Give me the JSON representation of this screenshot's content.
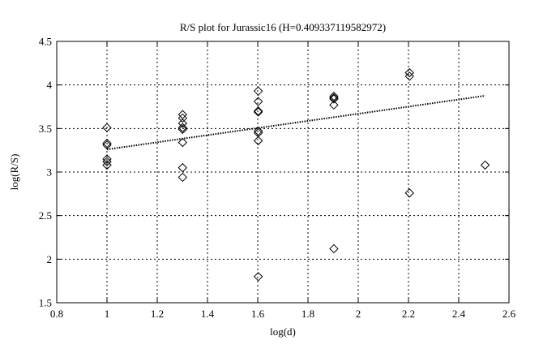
{
  "chart_data": {
    "type": "scatter",
    "title": "R/S plot for Jurassic16 (H=0.409337119582972)",
    "xlabel": "log(d)",
    "ylabel": "log(R/S)",
    "xlim": [
      0.8,
      2.6
    ],
    "ylim": [
      1.5,
      4.5
    ],
    "xticks": [
      0.8,
      1,
      1.2,
      1.4,
      1.6,
      1.8,
      2,
      2.2,
      2.4,
      2.6
    ],
    "yticks": [
      1.5,
      2,
      2.5,
      3,
      3.5,
      4,
      4.5
    ],
    "xtick_labels": [
      "0.8",
      "1",
      "1.2",
      "1.4",
      "1.6",
      "1.8",
      "2",
      "2.2",
      "2.4",
      "2.6"
    ],
    "ytick_labels": [
      "1.5",
      "2",
      "2.5",
      "3",
      "3.5",
      "4",
      "4.5"
    ],
    "grid": true,
    "marker": "diamond",
    "points": [
      {
        "x": 1.0,
        "y": 3.51
      },
      {
        "x": 1.0,
        "y": 3.33
      },
      {
        "x": 1.0,
        "y": 3.31
      },
      {
        "x": 1.0,
        "y": 3.15
      },
      {
        "x": 1.0,
        "y": 3.12
      },
      {
        "x": 1.0,
        "y": 3.08
      },
      {
        "x": 1.301,
        "y": 3.66
      },
      {
        "x": 1.301,
        "y": 3.62
      },
      {
        "x": 1.301,
        "y": 3.56
      },
      {
        "x": 1.301,
        "y": 3.51
      },
      {
        "x": 1.301,
        "y": 3.49
      },
      {
        "x": 1.301,
        "y": 3.34
      },
      {
        "x": 1.301,
        "y": 3.05
      },
      {
        "x": 1.301,
        "y": 2.94
      },
      {
        "x": 1.602,
        "y": 3.93
      },
      {
        "x": 1.602,
        "y": 3.81
      },
      {
        "x": 1.602,
        "y": 3.7
      },
      {
        "x": 1.602,
        "y": 3.69
      },
      {
        "x": 1.602,
        "y": 3.47
      },
      {
        "x": 1.602,
        "y": 3.45
      },
      {
        "x": 1.602,
        "y": 3.36
      },
      {
        "x": 1.602,
        "y": 1.8
      },
      {
        "x": 1.903,
        "y": 3.87
      },
      {
        "x": 1.903,
        "y": 3.85
      },
      {
        "x": 1.903,
        "y": 3.84
      },
      {
        "x": 1.903,
        "y": 3.77
      },
      {
        "x": 1.903,
        "y": 2.12
      },
      {
        "x": 2.204,
        "y": 4.14
      },
      {
        "x": 2.204,
        "y": 4.1
      },
      {
        "x": 2.204,
        "y": 2.76
      },
      {
        "x": 2.505,
        "y": 3.08
      }
    ],
    "fit_line": {
      "x": [
        1.0,
        2.505
      ],
      "y": [
        3.26,
        3.876
      ],
      "style": "dotted"
    }
  }
}
